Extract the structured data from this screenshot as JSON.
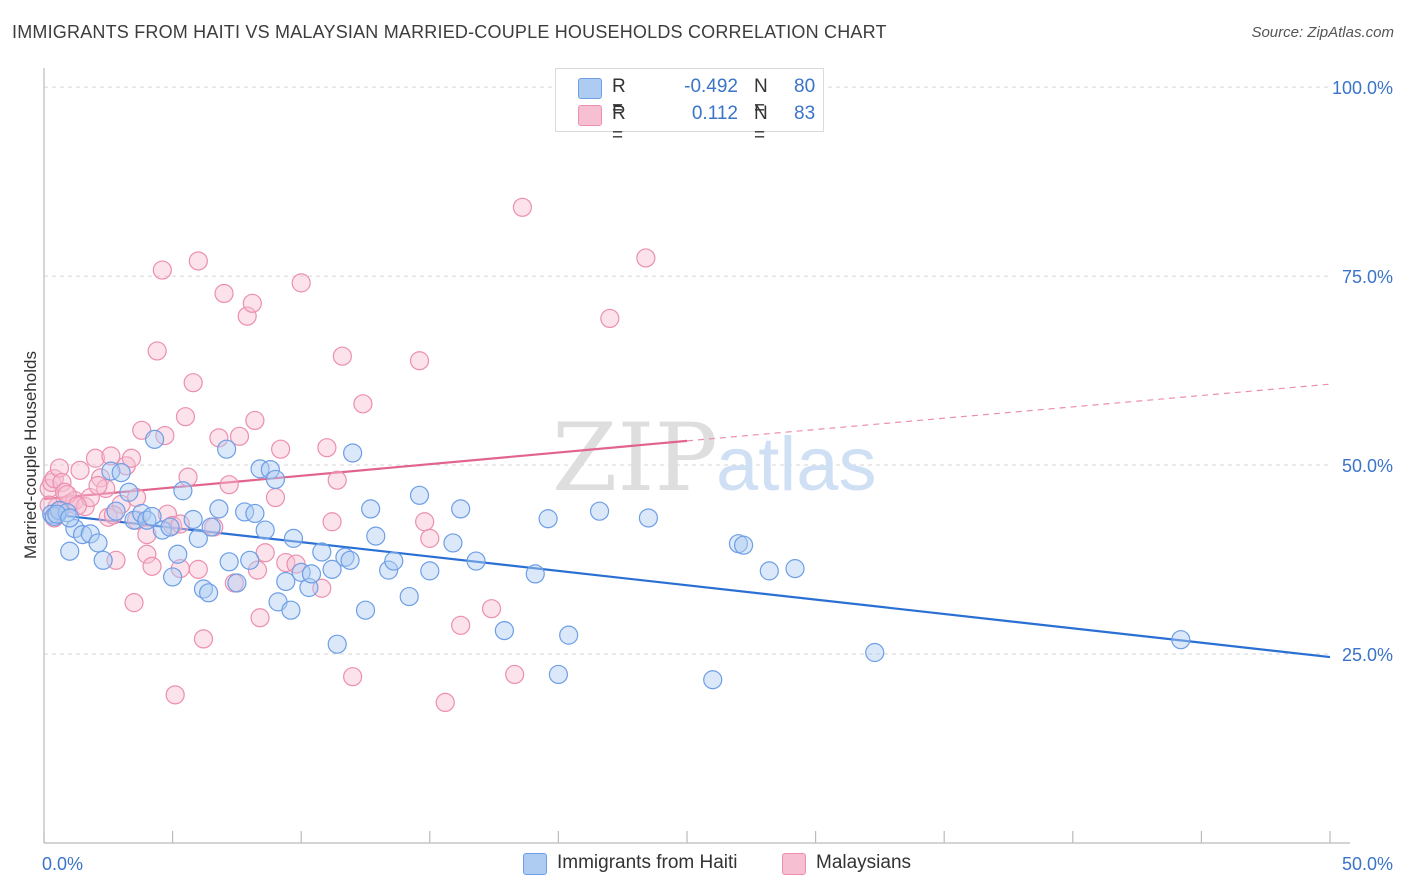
{
  "title": "IMMIGRANTS FROM HAITI VS MALAYSIAN MARRIED-COUPLE HOUSEHOLDS CORRELATION CHART",
  "source": "Source: ZipAtlas.com",
  "watermark": {
    "zip": "ZIP",
    "atlas": "atlas"
  },
  "legend": {
    "r_label": "R =",
    "n_label": "N =",
    "rows": [
      {
        "r": "-0.492",
        "n": "80"
      },
      {
        "r": "0.112",
        "n": "83"
      }
    ]
  },
  "colors": {
    "blue_fill": "#aecbf2",
    "blue_stroke": "#6d9ee6",
    "blue_line": "#2a6fd3",
    "pink_fill": "#f7bfd2",
    "pink_stroke": "#ec8fae",
    "pink_line": "#e2638c",
    "tick_label": "#3a74c9",
    "grid": "#d6d6d6"
  },
  "chart_data": {
    "type": "scatter",
    "title": "IMMIGRANTS FROM HAITI VS MALAYSIAN MARRIED-COUPLE HOUSEHOLDS CORRELATION CHART",
    "xlabel": "",
    "ylabel": "Married-couple Households",
    "xlim": [
      0,
      50
    ],
    "ylim": [
      0,
      102
    ],
    "x_tick_labels": [
      "0.0%",
      "50.0%"
    ],
    "y_ticks": [
      25,
      50,
      75,
      100
    ],
    "y_tick_labels": [
      "25.0%",
      "50.0%",
      "75.0%",
      "100.0%"
    ],
    "grid": "horizontal dashed",
    "legend_position": "top-center",
    "series": [
      {
        "name": "Immigrants from Haiti",
        "color": "#6d9ee6",
        "trend": {
          "x": [
            0,
            50
          ],
          "y": [
            43.6,
            24.6
          ],
          "style": "solid"
        },
        "points": [
          [
            0.3,
            43.5
          ],
          [
            0.4,
            43.2
          ],
          [
            0.6,
            44.0
          ],
          [
            0.9,
            43.7
          ],
          [
            1.0,
            38.6
          ],
          [
            1.2,
            41.6
          ],
          [
            1.5,
            40.8
          ],
          [
            1.8,
            40.9
          ],
          [
            2.1,
            39.7
          ],
          [
            2.3,
            37.4
          ],
          [
            2.6,
            49.2
          ],
          [
            2.8,
            43.9
          ],
          [
            3.0,
            49.0
          ],
          [
            3.3,
            46.4
          ],
          [
            3.5,
            42.7
          ],
          [
            3.8,
            43.6
          ],
          [
            4.0,
            42.7
          ],
          [
            4.2,
            43.2
          ],
          [
            4.3,
            53.4
          ],
          [
            4.6,
            41.4
          ],
          [
            4.9,
            41.8
          ],
          [
            5.0,
            35.2
          ],
          [
            5.2,
            38.2
          ],
          [
            5.4,
            46.6
          ],
          [
            5.8,
            42.8
          ],
          [
            6.0,
            40.3
          ],
          [
            6.2,
            33.6
          ],
          [
            6.4,
            33.1
          ],
          [
            6.5,
            41.8
          ],
          [
            6.8,
            44.2
          ],
          [
            7.1,
            52.1
          ],
          [
            7.2,
            37.2
          ],
          [
            7.5,
            34.4
          ],
          [
            7.8,
            43.8
          ],
          [
            8.0,
            37.4
          ],
          [
            8.2,
            43.6
          ],
          [
            8.4,
            49.5
          ],
          [
            8.6,
            41.4
          ],
          [
            8.8,
            49.4
          ],
          [
            9.0,
            48.1
          ],
          [
            9.1,
            31.9
          ],
          [
            9.4,
            34.6
          ],
          [
            9.6,
            30.8
          ],
          [
            9.7,
            40.3
          ],
          [
            10.0,
            35.8
          ],
          [
            10.3,
            33.8
          ],
          [
            10.4,
            35.6
          ],
          [
            10.8,
            38.5
          ],
          [
            11.2,
            36.2
          ],
          [
            11.4,
            26.3
          ],
          [
            11.7,
            37.8
          ],
          [
            11.9,
            37.4
          ],
          [
            12.0,
            51.6
          ],
          [
            12.5,
            30.8
          ],
          [
            12.7,
            44.2
          ],
          [
            12.9,
            40.6
          ],
          [
            13.4,
            36.1
          ],
          [
            13.6,
            37.3
          ],
          [
            14.2,
            32.6
          ],
          [
            14.6,
            46.0
          ],
          [
            15.0,
            36.0
          ],
          [
            15.9,
            39.7
          ],
          [
            16.2,
            44.2
          ],
          [
            16.8,
            37.3
          ],
          [
            17.9,
            28.1
          ],
          [
            19.1,
            35.6
          ],
          [
            19.6,
            42.9
          ],
          [
            20.0,
            22.3
          ],
          [
            20.4,
            27.5
          ],
          [
            21.6,
            43.9
          ],
          [
            23.5,
            43.0
          ],
          [
            26.0,
            21.6
          ],
          [
            27.0,
            39.6
          ],
          [
            27.2,
            39.4
          ],
          [
            28.2,
            36.0
          ],
          [
            29.2,
            36.3
          ],
          [
            32.3,
            25.2
          ],
          [
            44.2,
            26.9
          ],
          [
            0.5,
            43.5
          ],
          [
            1.0,
            43.0
          ]
        ]
      },
      {
        "name": "Malaysians",
        "color": "#ec8fae",
        "trend": {
          "x": [
            0,
            25
          ],
          "y": [
            45.5,
            53.2
          ],
          "style": "solid",
          "extended": {
            "x": [
              25,
              50
            ],
            "y": [
              53.2,
              60.7
            ],
            "style": "dashed"
          }
        },
        "points": [
          [
            0.2,
            46.9
          ],
          [
            0.3,
            47.7
          ],
          [
            0.4,
            48.2
          ],
          [
            0.5,
            44.4
          ],
          [
            0.6,
            49.6
          ],
          [
            0.7,
            47.7
          ],
          [
            0.8,
            46.4
          ],
          [
            1.0,
            44.9
          ],
          [
            1.2,
            45.3
          ],
          [
            1.4,
            49.3
          ],
          [
            1.6,
            44.5
          ],
          [
            1.8,
            45.7
          ],
          [
            2.0,
            50.9
          ],
          [
            2.2,
            48.3
          ],
          [
            2.4,
            46.9
          ],
          [
            2.6,
            51.2
          ],
          [
            2.8,
            37.4
          ],
          [
            3.0,
            44.8
          ],
          [
            3.2,
            49.9
          ],
          [
            3.4,
            50.9
          ],
          [
            3.5,
            31.8
          ],
          [
            3.6,
            45.7
          ],
          [
            3.8,
            54.6
          ],
          [
            4.0,
            38.2
          ],
          [
            4.2,
            36.6
          ],
          [
            4.4,
            65.1
          ],
          [
            4.6,
            75.8
          ],
          [
            4.7,
            53.9
          ],
          [
            4.8,
            43.5
          ],
          [
            5.0,
            42.0
          ],
          [
            5.1,
            19.6
          ],
          [
            5.3,
            36.3
          ],
          [
            5.5,
            56.4
          ],
          [
            5.6,
            48.4
          ],
          [
            5.8,
            60.9
          ],
          [
            6.0,
            77.0
          ],
          [
            6.2,
            27.0
          ],
          [
            6.6,
            41.8
          ],
          [
            6.8,
            53.6
          ],
          [
            7.0,
            72.7
          ],
          [
            7.2,
            47.4
          ],
          [
            7.4,
            34.4
          ],
          [
            7.6,
            53.8
          ],
          [
            7.9,
            69.7
          ],
          [
            8.1,
            71.4
          ],
          [
            8.2,
            55.9
          ],
          [
            8.3,
            36.1
          ],
          [
            8.4,
            29.8
          ],
          [
            8.6,
            38.4
          ],
          [
            9.0,
            45.7
          ],
          [
            9.2,
            52.1
          ],
          [
            9.4,
            37.1
          ],
          [
            9.8,
            36.9
          ],
          [
            10.0,
            74.1
          ],
          [
            10.8,
            33.7
          ],
          [
            11.0,
            52.3
          ],
          [
            11.2,
            42.5
          ],
          [
            11.4,
            48.0
          ],
          [
            11.6,
            64.4
          ],
          [
            12.0,
            22.0
          ],
          [
            12.4,
            58.1
          ],
          [
            14.6,
            63.8
          ],
          [
            14.8,
            42.5
          ],
          [
            15.0,
            40.3
          ],
          [
            15.6,
            18.6
          ],
          [
            16.2,
            28.8
          ],
          [
            17.4,
            31.0
          ],
          [
            18.3,
            22.3
          ],
          [
            18.6,
            84.1
          ],
          [
            22.0,
            69.4
          ],
          [
            23.4,
            77.4
          ],
          [
            0.2,
            44.7
          ],
          [
            0.4,
            43.0
          ],
          [
            0.6,
            43.9
          ],
          [
            0.9,
            46.1
          ],
          [
            1.3,
            44.6
          ],
          [
            2.1,
            47.3
          ],
          [
            2.5,
            43.1
          ],
          [
            2.7,
            43.4
          ],
          [
            3.6,
            42.7
          ],
          [
            4.0,
            40.8
          ],
          [
            5.3,
            42.2
          ],
          [
            6.0,
            36.2
          ]
        ]
      }
    ]
  }
}
